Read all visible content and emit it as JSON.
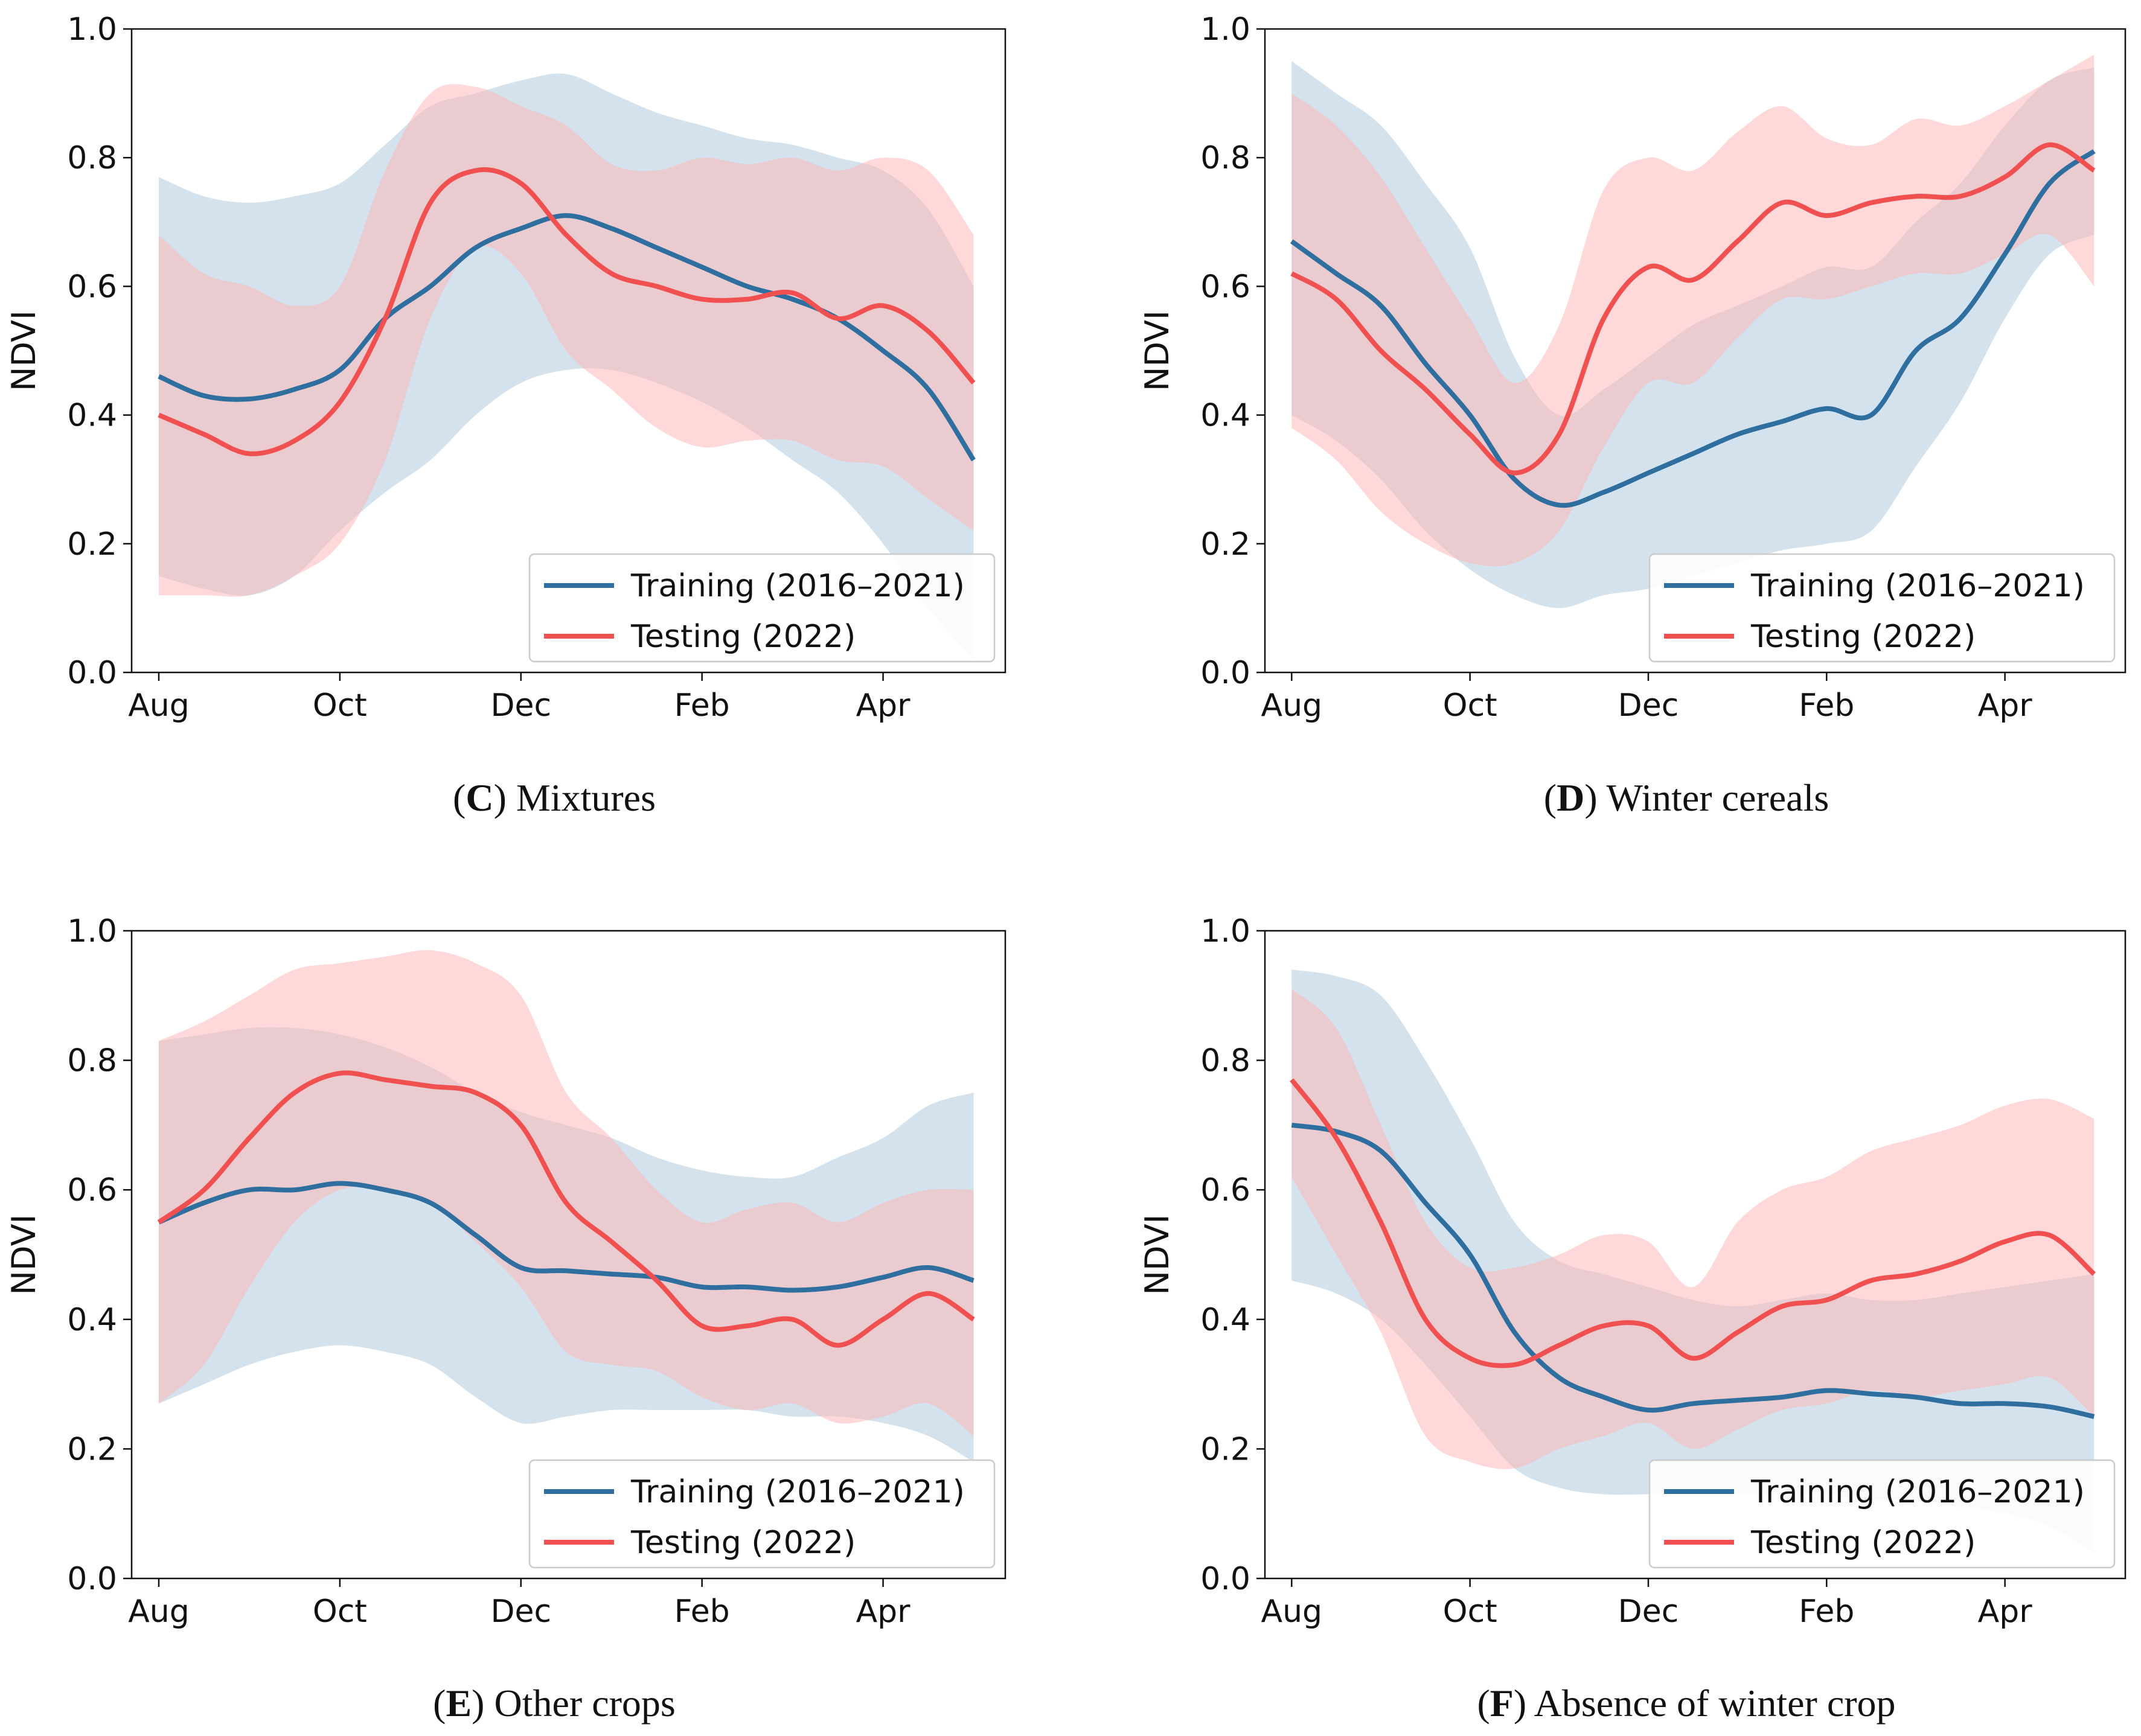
{
  "figure": {
    "style": {
      "training_color": "#2f6f9f",
      "testing_color": "#f05050",
      "training_band_color": "#a9c6dc",
      "testing_band_color": "#ffb3b3"
    }
  },
  "chart_data": [
    {
      "type": "line",
      "panel_letter": "C",
      "caption": "Mixtures",
      "ylabel": "NDVI",
      "xlabel": "",
      "ylim": [
        0,
        1
      ],
      "yticks": [
        "0.0",
        "0.2",
        "0.4",
        "0.6",
        "0.8",
        "1.0"
      ],
      "xticks": [
        "Aug",
        "Oct",
        "Dec",
        "Feb",
        "Apr"
      ],
      "xlim": [
        -0.3,
        9.35
      ],
      "legend_position": "bottom-right",
      "series": [
        {
          "name": "Training (2016–2021)",
          "x": [
            0,
            0.5,
            1,
            1.5,
            2,
            2.5,
            3,
            3.5,
            4,
            4.5,
            5,
            5.5,
            6,
            6.5,
            7,
            7.5,
            8,
            8.5,
            9
          ],
          "mean": [
            0.46,
            0.43,
            0.425,
            0.44,
            0.47,
            0.55,
            0.6,
            0.66,
            0.69,
            0.71,
            0.69,
            0.66,
            0.63,
            0.6,
            0.58,
            0.55,
            0.5,
            0.44,
            0.33
          ],
          "upper": [
            0.77,
            0.74,
            0.73,
            0.74,
            0.76,
            0.82,
            0.88,
            0.9,
            0.92,
            0.93,
            0.9,
            0.87,
            0.85,
            0.83,
            0.82,
            0.8,
            0.78,
            0.72,
            0.6
          ],
          "lower": [
            0.15,
            0.13,
            0.12,
            0.15,
            0.22,
            0.28,
            0.33,
            0.4,
            0.45,
            0.47,
            0.47,
            0.45,
            0.42,
            0.38,
            0.33,
            0.28,
            0.2,
            0.1,
            0.02
          ]
        },
        {
          "name": "Testing (2022)",
          "x": [
            0,
            0.5,
            1,
            1.5,
            2,
            2.5,
            3,
            3.5,
            4,
            4.5,
            5,
            5.5,
            6,
            6.5,
            7,
            7.5,
            8,
            8.5,
            9
          ],
          "mean": [
            0.4,
            0.37,
            0.34,
            0.36,
            0.42,
            0.55,
            0.73,
            0.78,
            0.76,
            0.68,
            0.62,
            0.6,
            0.58,
            0.58,
            0.59,
            0.55,
            0.57,
            0.53,
            0.45
          ],
          "upper": [
            0.68,
            0.62,
            0.6,
            0.57,
            0.6,
            0.78,
            0.9,
            0.91,
            0.88,
            0.85,
            0.79,
            0.78,
            0.8,
            0.79,
            0.8,
            0.78,
            0.8,
            0.78,
            0.68
          ],
          "lower": [
            0.12,
            0.12,
            0.12,
            0.15,
            0.2,
            0.33,
            0.55,
            0.66,
            0.62,
            0.5,
            0.44,
            0.38,
            0.35,
            0.36,
            0.36,
            0.33,
            0.32,
            0.27,
            0.22
          ]
        }
      ]
    },
    {
      "type": "line",
      "panel_letter": "D",
      "caption": "Winter cereals",
      "ylabel": "NDVI",
      "xlabel": "",
      "ylim": [
        0,
        1
      ],
      "yticks": [
        "0.0",
        "0.2",
        "0.4",
        "0.6",
        "0.8",
        "1.0"
      ],
      "xticks": [
        "Aug",
        "Oct",
        "Dec",
        "Feb",
        "Apr"
      ],
      "xlim": [
        -0.3,
        9.35
      ],
      "legend_position": "bottom-right",
      "series": [
        {
          "name": "Training (2016–2021)",
          "x": [
            0,
            0.5,
            1,
            1.5,
            2,
            2.5,
            3,
            3.5,
            4,
            4.5,
            5,
            5.5,
            6,
            6.5,
            7,
            7.5,
            8,
            8.5,
            9
          ],
          "mean": [
            0.67,
            0.62,
            0.57,
            0.48,
            0.4,
            0.3,
            0.26,
            0.28,
            0.31,
            0.34,
            0.37,
            0.39,
            0.41,
            0.4,
            0.5,
            0.55,
            0.65,
            0.76,
            0.81
          ],
          "upper": [
            0.95,
            0.9,
            0.85,
            0.76,
            0.66,
            0.49,
            0.4,
            0.44,
            0.49,
            0.54,
            0.57,
            0.6,
            0.63,
            0.63,
            0.7,
            0.76,
            0.85,
            0.92,
            0.94
          ],
          "lower": [
            0.4,
            0.36,
            0.3,
            0.22,
            0.16,
            0.12,
            0.1,
            0.12,
            0.13,
            0.15,
            0.17,
            0.19,
            0.2,
            0.22,
            0.32,
            0.42,
            0.55,
            0.65,
            0.68
          ]
        },
        {
          "name": "Testing (2022)",
          "x": [
            0,
            0.5,
            1,
            1.5,
            2,
            2.5,
            3,
            3.5,
            4,
            4.5,
            5,
            5.5,
            6,
            6.5,
            7,
            7.5,
            8,
            8.5,
            9
          ],
          "mean": [
            0.62,
            0.58,
            0.5,
            0.44,
            0.37,
            0.31,
            0.37,
            0.55,
            0.63,
            0.61,
            0.67,
            0.73,
            0.71,
            0.73,
            0.74,
            0.74,
            0.77,
            0.82,
            0.78
          ],
          "upper": [
            0.9,
            0.85,
            0.77,
            0.66,
            0.55,
            0.45,
            0.54,
            0.75,
            0.8,
            0.78,
            0.84,
            0.88,
            0.83,
            0.82,
            0.86,
            0.85,
            0.88,
            0.92,
            0.96
          ],
          "lower": [
            0.38,
            0.33,
            0.25,
            0.2,
            0.17,
            0.17,
            0.22,
            0.35,
            0.45,
            0.45,
            0.52,
            0.58,
            0.58,
            0.6,
            0.62,
            0.62,
            0.65,
            0.68,
            0.6
          ]
        }
      ]
    },
    {
      "type": "line",
      "panel_letter": "E",
      "caption": "Other crops",
      "ylabel": "NDVI",
      "xlabel": "",
      "ylim": [
        0,
        1
      ],
      "yticks": [
        "0.0",
        "0.2",
        "0.4",
        "0.6",
        "0.8",
        "1.0"
      ],
      "xticks": [
        "Aug",
        "Oct",
        "Dec",
        "Feb",
        "Apr"
      ],
      "xlim": [
        -0.3,
        9.35
      ],
      "legend_position": "bottom-right",
      "series": [
        {
          "name": "Training (2016–2021)",
          "x": [
            0,
            0.5,
            1,
            1.5,
            2,
            2.5,
            3,
            3.5,
            4,
            4.5,
            5,
            5.5,
            6,
            6.5,
            7,
            7.5,
            8,
            8.5,
            9
          ],
          "mean": [
            0.55,
            0.58,
            0.6,
            0.6,
            0.61,
            0.6,
            0.58,
            0.53,
            0.48,
            0.475,
            0.47,
            0.465,
            0.45,
            0.45,
            0.445,
            0.45,
            0.465,
            0.48,
            0.46
          ],
          "upper": [
            0.83,
            0.84,
            0.85,
            0.85,
            0.84,
            0.82,
            0.79,
            0.75,
            0.72,
            0.7,
            0.68,
            0.65,
            0.63,
            0.62,
            0.62,
            0.65,
            0.68,
            0.73,
            0.75
          ],
          "lower": [
            0.27,
            0.3,
            0.33,
            0.35,
            0.36,
            0.35,
            0.33,
            0.28,
            0.24,
            0.25,
            0.26,
            0.26,
            0.26,
            0.26,
            0.25,
            0.25,
            0.24,
            0.22,
            0.18
          ]
        },
        {
          "name": "Testing (2022)",
          "x": [
            0,
            0.5,
            1,
            1.5,
            2,
            2.5,
            3,
            3.5,
            4,
            4.5,
            5,
            5.5,
            6,
            6.5,
            7,
            7.5,
            8,
            8.5,
            9
          ],
          "mean": [
            0.55,
            0.6,
            0.68,
            0.75,
            0.78,
            0.77,
            0.76,
            0.75,
            0.7,
            0.58,
            0.52,
            0.46,
            0.39,
            0.39,
            0.4,
            0.36,
            0.4,
            0.44,
            0.4
          ],
          "upper": [
            0.83,
            0.86,
            0.9,
            0.94,
            0.95,
            0.96,
            0.97,
            0.95,
            0.9,
            0.75,
            0.68,
            0.6,
            0.55,
            0.57,
            0.58,
            0.55,
            0.58,
            0.6,
            0.6
          ],
          "lower": [
            0.27,
            0.33,
            0.45,
            0.55,
            0.6,
            0.6,
            0.58,
            0.52,
            0.45,
            0.35,
            0.33,
            0.32,
            0.28,
            0.26,
            0.27,
            0.24,
            0.25,
            0.27,
            0.22
          ]
        }
      ]
    },
    {
      "type": "line",
      "panel_letter": "F",
      "caption": "Absence of winter crop",
      "ylabel": "NDVI",
      "xlabel": "",
      "ylim": [
        0,
        1
      ],
      "yticks": [
        "0.0",
        "0.2",
        "0.4",
        "0.6",
        "0.8",
        "1.0"
      ],
      "xticks": [
        "Aug",
        "Oct",
        "Dec",
        "Feb",
        "Apr"
      ],
      "xlim": [
        -0.3,
        9.35
      ],
      "legend_position": "bottom-right",
      "series": [
        {
          "name": "Training (2016–2021)",
          "x": [
            0,
            0.5,
            1,
            1.5,
            2,
            2.5,
            3,
            3.5,
            4,
            4.5,
            5,
            5.5,
            6,
            6.5,
            7,
            7.5,
            8,
            8.5,
            9
          ],
          "mean": [
            0.7,
            0.69,
            0.66,
            0.58,
            0.5,
            0.38,
            0.31,
            0.28,
            0.26,
            0.27,
            0.275,
            0.28,
            0.29,
            0.285,
            0.28,
            0.27,
            0.27,
            0.265,
            0.25
          ],
          "upper": [
            0.94,
            0.93,
            0.9,
            0.8,
            0.68,
            0.55,
            0.49,
            0.47,
            0.45,
            0.43,
            0.42,
            0.43,
            0.44,
            0.43,
            0.43,
            0.44,
            0.45,
            0.46,
            0.47
          ],
          "lower": [
            0.46,
            0.44,
            0.4,
            0.33,
            0.25,
            0.17,
            0.14,
            0.13,
            0.13,
            0.13,
            0.13,
            0.13,
            0.13,
            0.12,
            0.12,
            0.11,
            0.1,
            0.08,
            0.04
          ]
        },
        {
          "name": "Testing (2022)",
          "x": [
            0,
            0.5,
            1,
            1.5,
            2,
            2.5,
            3,
            3.5,
            4,
            4.5,
            5,
            5.5,
            6,
            6.5,
            7,
            7.5,
            8,
            8.5,
            9
          ],
          "mean": [
            0.77,
            0.68,
            0.55,
            0.4,
            0.34,
            0.33,
            0.36,
            0.39,
            0.39,
            0.34,
            0.38,
            0.42,
            0.43,
            0.46,
            0.47,
            0.49,
            0.52,
            0.53,
            0.47
          ],
          "upper": [
            0.91,
            0.85,
            0.7,
            0.55,
            0.48,
            0.48,
            0.5,
            0.53,
            0.52,
            0.45,
            0.55,
            0.6,
            0.62,
            0.66,
            0.68,
            0.7,
            0.73,
            0.74,
            0.71
          ],
          "lower": [
            0.62,
            0.5,
            0.38,
            0.22,
            0.18,
            0.17,
            0.2,
            0.22,
            0.24,
            0.2,
            0.23,
            0.26,
            0.27,
            0.29,
            0.28,
            0.29,
            0.3,
            0.31,
            0.25
          ]
        }
      ]
    }
  ]
}
